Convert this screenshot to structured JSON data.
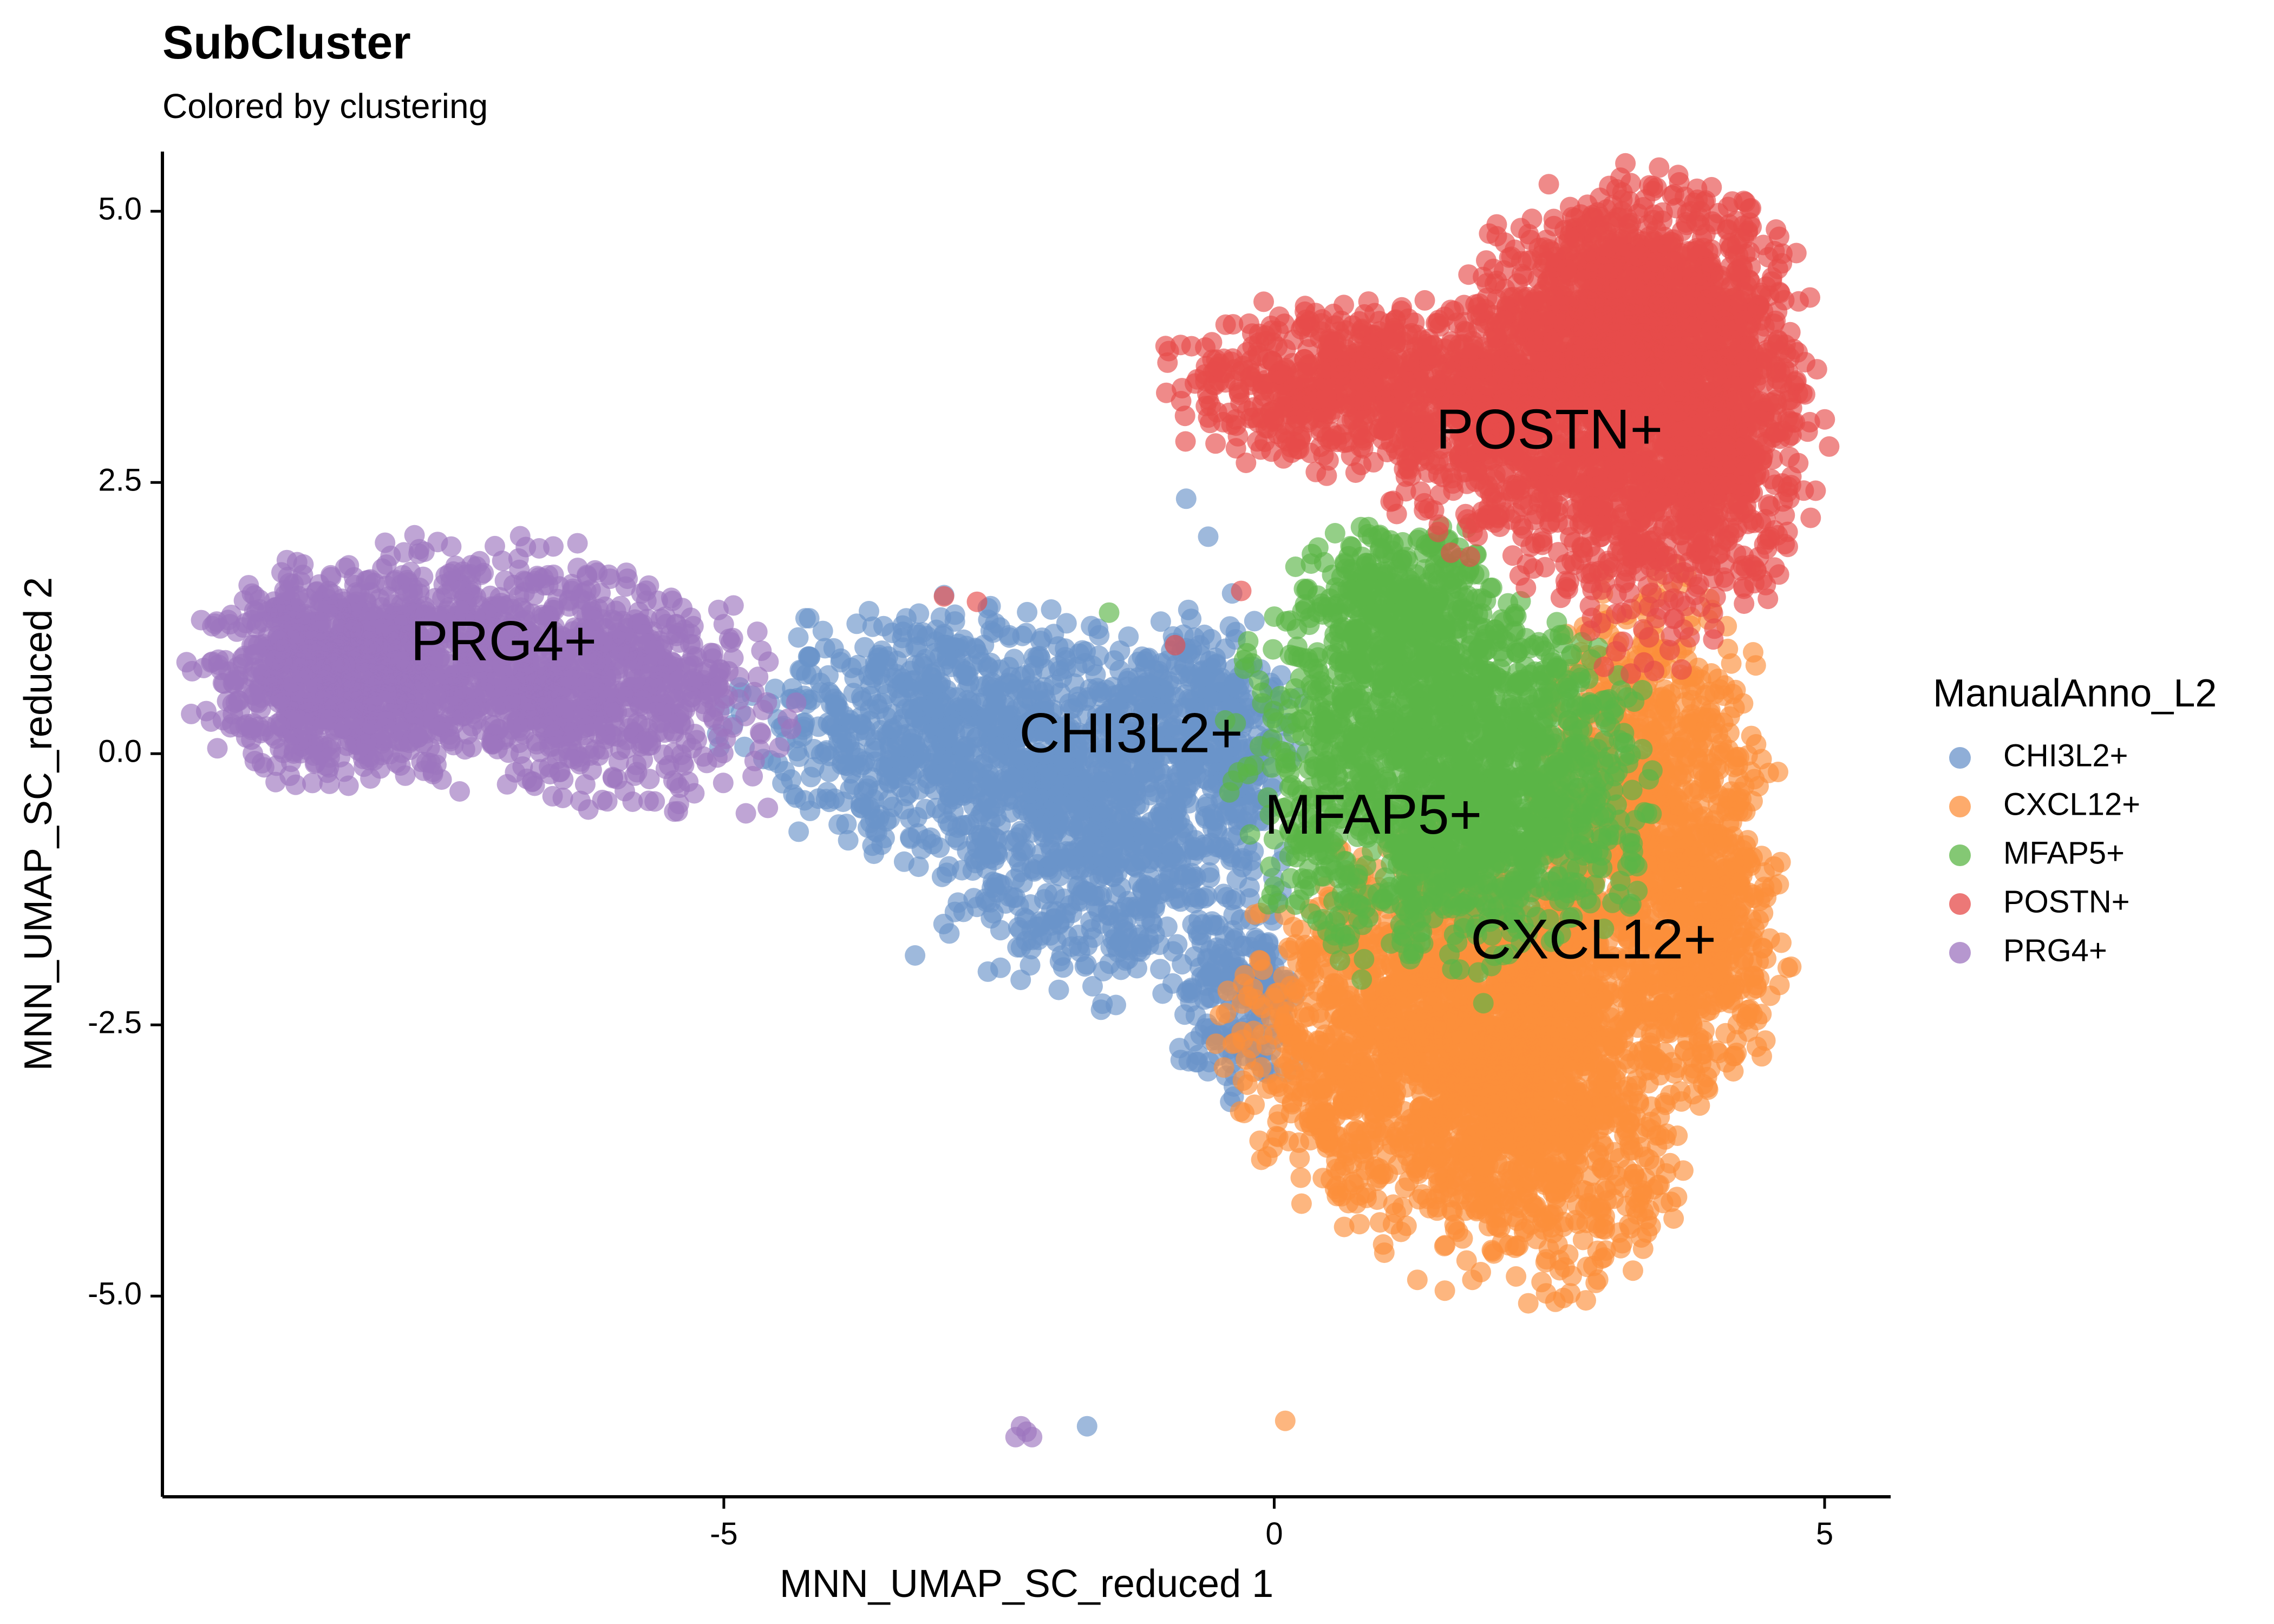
{
  "chart_data": {
    "type": "scatter",
    "title": "SubCluster",
    "subtitle": "Colored by clustering",
    "xlabel": "MNN_UMAP_SC_reduced 1",
    "ylabel": "MNN_UMAP_SC_reduced 2",
    "xlim": [
      -10.1,
      5.6
    ],
    "ylim": [
      -6.85,
      5.55
    ],
    "x_ticks": [
      -5,
      0,
      5
    ],
    "x_tick_labels": [
      "-5",
      "0",
      "5"
    ],
    "y_ticks": [
      5.0,
      2.5,
      0.0,
      -2.5,
      -5.0
    ],
    "y_tick_labels": [
      "5.0",
      "2.5",
      "0.0",
      "-2.5",
      "-5.0"
    ],
    "grid": false,
    "legend": {
      "title": "ManualAnno_L2",
      "position": "right"
    },
    "series": [
      {
        "name": "CHI3L2+",
        "color": "#6A93C9",
        "label_position": [
          -1.3,
          0.15
        ],
        "regions": [
          {
            "cx": -3.0,
            "cy": 0.25,
            "sx": 0.85,
            "sy": 0.55,
            "n": 700
          },
          {
            "cx": -1.5,
            "cy": -0.6,
            "sx": 0.75,
            "sy": 0.75,
            "n": 900
          },
          {
            "cx": -0.6,
            "cy": 0.3,
            "sx": 0.35,
            "sy": 0.5,
            "n": 250
          },
          {
            "cx": -0.35,
            "cy": -2.3,
            "sx": 0.3,
            "sy": 0.45,
            "n": 180
          }
        ],
        "outliers": [
          [
            -1.7,
            -6.2
          ],
          [
            -0.8,
            2.35
          ],
          [
            -0.6,
            2.0
          ]
        ]
      },
      {
        "name": "CXCL12+",
        "color": "#FC8F3B",
        "label_position": [
          2.9,
          -1.75
        ],
        "regions": [
          {
            "cx": 1.3,
            "cy": -2.6,
            "sx": 0.75,
            "sy": 0.8,
            "n": 1400
          },
          {
            "cx": 2.5,
            "cy": -2.9,
            "sx": 0.6,
            "sy": 0.9,
            "n": 1100
          },
          {
            "cx": 3.4,
            "cy": -0.6,
            "sx": 0.5,
            "sy": 1.0,
            "n": 900
          },
          {
            "cx": 3.9,
            "cy": -1.8,
            "sx": 0.35,
            "sy": 0.6,
            "n": 350
          }
        ],
        "outliers": [
          [
            0.1,
            -6.15
          ],
          [
            1.0,
            -4.6
          ],
          [
            1.3,
            -4.85
          ],
          [
            1.55,
            -4.95
          ],
          [
            1.8,
            -4.85
          ],
          [
            4.4,
            -0.3
          ],
          [
            4.6,
            -1.0
          ]
        ]
      },
      {
        "name": "MFAP5+",
        "color": "#5BB646",
        "label_position": [
          0.9,
          -0.6
        ],
        "regions": [
          {
            "cx": 1.2,
            "cy": -0.1,
            "sx": 0.7,
            "sy": 0.85,
            "n": 1100
          },
          {
            "cx": 2.3,
            "cy": -0.3,
            "sx": 0.5,
            "sy": 0.7,
            "n": 600
          },
          {
            "cx": 1.1,
            "cy": 1.3,
            "sx": 0.45,
            "sy": 0.4,
            "n": 300
          }
        ],
        "outliers": [
          [
            -1.5,
            1.3
          ],
          [
            1.9,
            -2.3
          ],
          [
            0.4,
            1.9
          ]
        ]
      },
      {
        "name": "POSTN+",
        "color": "#E64B4A",
        "label_position": [
          2.5,
          2.95
        ],
        "regions": [
          {
            "cx": 0.6,
            "cy": 3.4,
            "sx": 0.75,
            "sy": 0.35,
            "n": 600
          },
          {
            "cx": 2.2,
            "cy": 3.1,
            "sx": 0.6,
            "sy": 0.6,
            "n": 700
          },
          {
            "cx": 3.3,
            "cy": 4.1,
            "sx": 0.65,
            "sy": 0.55,
            "n": 1100
          },
          {
            "cx": 3.4,
            "cy": 2.5,
            "sx": 0.55,
            "sy": 0.75,
            "n": 700
          },
          {
            "cx": 4.2,
            "cy": 3.0,
            "sx": 0.35,
            "sy": 0.6,
            "n": 350
          }
        ],
        "outliers": [
          [
            -3.0,
            1.45
          ],
          [
            -2.7,
            1.4
          ],
          [
            -0.3,
            1.5
          ],
          [
            -0.9,
            1.0
          ]
        ]
      },
      {
        "name": "PRG4+",
        "color": "#9D74BF",
        "label_position": [
          -7.0,
          1.0
        ],
        "regions": [
          {
            "cx": -8.6,
            "cy": 0.75,
            "sx": 0.55,
            "sy": 0.45,
            "n": 700
          },
          {
            "cx": -7.2,
            "cy": 0.85,
            "sx": 0.8,
            "sy": 0.5,
            "n": 800
          },
          {
            "cx": -5.8,
            "cy": 0.5,
            "sx": 0.6,
            "sy": 0.45,
            "n": 400
          }
        ],
        "outliers": [
          [
            -2.3,
            -6.2
          ],
          [
            -2.35,
            -6.3
          ],
          [
            -2.25,
            -6.25
          ],
          [
            -2.2,
            -6.3
          ],
          [
            -4.6,
            -0.5
          ],
          [
            -4.8,
            -0.55
          ]
        ]
      }
    ]
  }
}
